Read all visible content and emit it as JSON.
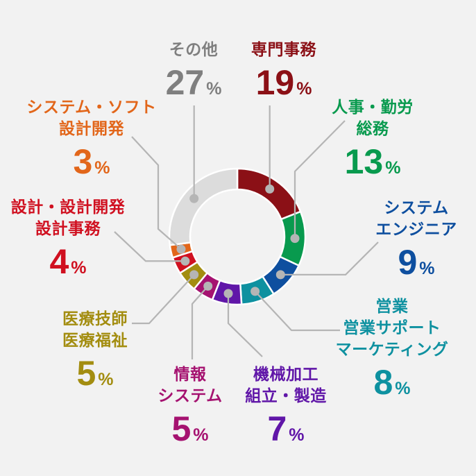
{
  "chart_data": {
    "type": "pie",
    "subtype": "donut",
    "unit": "%",
    "total": 100,
    "order": "clockwise-from-top",
    "legend_position": "around-chart-with-leader-lines",
    "percent_sign": "%",
    "segments": [
      {
        "id": "senmon-jimu",
        "label_lines": [
          "専門事務"
        ],
        "value": 19,
        "color": "#8b1016",
        "text_color": "#8b1016"
      },
      {
        "id": "jinji-kinro-somu",
        "label_lines": [
          "人事・勤労",
          "総務"
        ],
        "value": 13,
        "color": "#089a4e",
        "text_color": "#089a4e"
      },
      {
        "id": "system-engineer",
        "label_lines": [
          "システム",
          "エンジニア"
        ],
        "value": 9,
        "color": "#0e4f9f",
        "text_color": "#0e4f9f"
      },
      {
        "id": "eigyo-support-marketing",
        "label_lines": [
          "営業",
          "営業サポート",
          "マーケティング"
        ],
        "value": 8,
        "color": "#0e91a0",
        "text_color": "#0e91a0"
      },
      {
        "id": "kikai-kako-seizo",
        "label_lines": [
          "機械加工",
          "組立・製造"
        ],
        "value": 7,
        "color": "#6016a8",
        "text_color": "#6016a8"
      },
      {
        "id": "joho-system",
        "label_lines": [
          "情報",
          "システム"
        ],
        "value": 5,
        "color": "#a51270",
        "text_color": "#a51270"
      },
      {
        "id": "iryo-gishi-fukushi",
        "label_lines": [
          "医療技師",
          "医療福祉"
        ],
        "value": 5,
        "color": "#a38d10",
        "text_color": "#a38d10"
      },
      {
        "id": "sekkei-jimu",
        "label_lines": [
          "設計・設計開発",
          "設計事務"
        ],
        "value": 4,
        "color": "#d01020",
        "text_color": "#d01020"
      },
      {
        "id": "system-soft-sekkei",
        "label_lines": [
          "システム・ソフト",
          "設計開発"
        ],
        "value": 3,
        "color": "#e2661a",
        "text_color": "#e2661a"
      },
      {
        "id": "sonota",
        "label_lines": [
          "その他"
        ],
        "value": 27,
        "color": "#dcdcdc",
        "text_color": "#7f7f7f"
      }
    ]
  },
  "style": {
    "background": "#f2f2f2",
    "segment_gap_color": "#ffffff",
    "leader_line_color": "#b5b5b5",
    "leader_dot_color": "#b5b5b5"
  }
}
